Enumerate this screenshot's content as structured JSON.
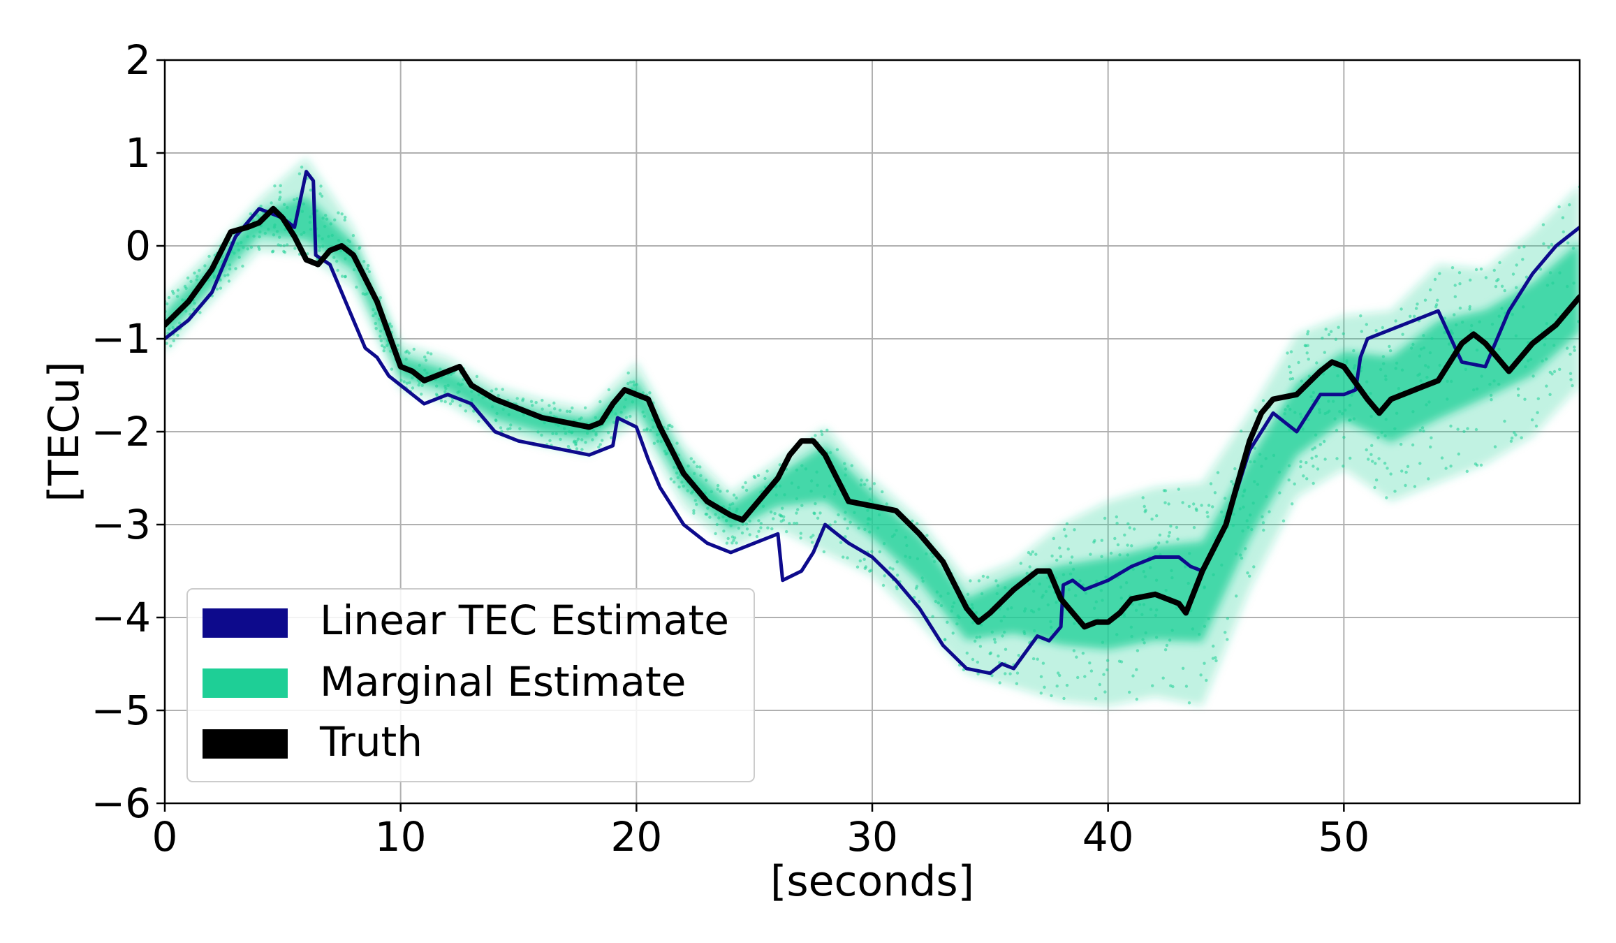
{
  "chart_data": {
    "type": "line",
    "title": "",
    "xlabel": "[seconds]",
    "ylabel": "[TECu]",
    "xlim": [
      0,
      60
    ],
    "ylim": [
      -6,
      2
    ],
    "xticks": [
      0,
      10,
      20,
      30,
      40,
      50
    ],
    "xtick_labels": [
      "0",
      "10",
      "20",
      "30",
      "40",
      "50"
    ],
    "yticks": [
      -6,
      -5,
      -4,
      -3,
      -2,
      -1,
      0,
      1,
      2
    ],
    "ytick_labels": [
      "−6",
      "−5",
      "−4",
      "−3",
      "−2",
      "−1",
      "0",
      "1",
      "2"
    ],
    "grid": true,
    "legend_position": "lower-left",
    "colors": {
      "linear": "#0d0a8c",
      "marginal": "#1ecf96",
      "truth": "#000000"
    },
    "series": [
      {
        "name": "Linear TEC Estimate",
        "color": "#0d0a8c",
        "x": [
          0,
          1,
          2,
          3,
          4,
          5,
          5.5,
          6,
          6.3,
          6.4,
          7,
          8,
          8.5,
          9,
          9.5,
          10,
          10.5,
          11,
          12,
          13,
          14,
          15,
          16,
          17,
          18,
          19,
          19.2,
          20,
          20.5,
          21,
          21.5,
          22,
          22.5,
          23,
          24,
          25,
          26,
          26.2,
          27,
          27.5,
          28,
          28.5,
          29,
          30,
          31,
          32,
          33,
          34,
          35,
          35.5,
          36,
          37,
          37.5,
          38,
          38.1,
          38.5,
          39,
          40,
          41,
          42,
          43,
          43.5,
          44,
          45,
          46,
          47,
          47.5,
          48,
          49,
          50,
          50.5,
          50.7,
          51,
          52,
          53,
          54,
          55,
          56,
          57,
          58,
          59,
          60
        ],
        "y": [
          -1.0,
          -0.8,
          -0.5,
          0.1,
          0.4,
          0.3,
          0.2,
          0.8,
          0.7,
          -0.1,
          -0.2,
          -0.8,
          -1.1,
          -1.2,
          -1.4,
          -1.5,
          -1.6,
          -1.7,
          -1.6,
          -1.7,
          -2.0,
          -2.1,
          -2.15,
          -2.2,
          -2.25,
          -2.15,
          -1.85,
          -1.95,
          -2.3,
          -2.6,
          -2.8,
          -3.0,
          -3.1,
          -3.2,
          -3.3,
          -3.2,
          -3.1,
          -3.6,
          -3.5,
          -3.3,
          -3.0,
          -3.1,
          -3.2,
          -3.35,
          -3.6,
          -3.9,
          -4.3,
          -4.55,
          -4.6,
          -4.5,
          -4.55,
          -4.2,
          -4.25,
          -4.1,
          -3.65,
          -3.6,
          -3.7,
          -3.6,
          -3.45,
          -3.35,
          -3.35,
          -3.45,
          -3.5,
          -3.0,
          -2.2,
          -1.8,
          -1.9,
          -2.0,
          -1.6,
          -1.6,
          -1.55,
          -1.2,
          -1.0,
          -0.9,
          -0.8,
          -0.7,
          -1.25,
          -1.3,
          -0.7,
          -0.3,
          0.0,
          0.2
        ]
      },
      {
        "name": "Marginal Estimate",
        "color": "#1ecf96",
        "x": [
          0,
          2,
          4,
          6,
          8,
          10,
          12,
          14,
          16,
          18,
          20,
          22,
          24,
          26,
          28,
          30,
          32,
          34,
          36,
          38,
          40,
          42,
          44,
          46,
          48,
          50,
          52,
          54,
          56,
          58,
          60
        ],
        "y": [
          -0.85,
          -0.3,
          0.25,
          0.2,
          -0.1,
          -1.3,
          -1.45,
          -1.75,
          -1.9,
          -1.95,
          -1.6,
          -2.45,
          -2.9,
          -2.6,
          -2.3,
          -2.8,
          -3.25,
          -3.95,
          -3.7,
          -3.8,
          -3.85,
          -3.75,
          -3.7,
          -2.7,
          -1.9,
          -1.45,
          -1.6,
          -1.3,
          -1.05,
          -0.85,
          -0.45
        ],
        "band_lower": [
          -1.15,
          -0.6,
          -0.05,
          -0.1,
          -0.45,
          -1.55,
          -1.7,
          -2.0,
          -2.15,
          -2.25,
          -1.9,
          -2.8,
          -3.25,
          -3.05,
          -3.3,
          -3.55,
          -4.05,
          -4.6,
          -4.75,
          -4.9,
          -4.95,
          -4.85,
          -4.95,
          -3.7,
          -2.7,
          -2.4,
          -2.75,
          -2.55,
          -2.35,
          -2.05,
          -1.5
        ],
        "band_upper": [
          -0.55,
          -0.05,
          0.5,
          0.95,
          0.2,
          -1.05,
          -1.2,
          -1.5,
          -1.65,
          -1.75,
          -1.25,
          -2.15,
          -2.65,
          -2.3,
          -1.95,
          -2.5,
          -2.95,
          -3.6,
          -3.4,
          -3.0,
          -2.75,
          -2.6,
          -2.55,
          -1.8,
          -0.95,
          -0.75,
          -0.7,
          -0.2,
          -0.25,
          0.15,
          0.65
        ]
      },
      {
        "name": "Truth",
        "color": "#000000",
        "x": [
          0,
          1,
          2,
          2.8,
          3.5,
          4,
          4.6,
          5,
          5.5,
          6,
          6.5,
          7,
          7.5,
          8,
          9,
          10,
          10.5,
          11,
          11.5,
          12,
          12.5,
          13,
          14,
          15,
          16,
          17,
          18,
          18.5,
          19,
          19.5,
          20,
          20.5,
          21,
          22,
          23,
          24,
          24.5,
          25,
          26,
          26.5,
          27,
          27.5,
          28,
          28.5,
          29,
          30,
          31,
          32,
          33,
          34,
          34.5,
          35,
          36,
          36.5,
          37,
          37.5,
          38,
          39,
          39.5,
          40,
          40.5,
          41,
          42,
          43,
          43.3,
          44,
          45,
          46,
          46.5,
          47,
          48,
          49,
          49.5,
          50,
          51,
          51.5,
          52,
          53,
          54,
          55,
          55.5,
          56,
          57,
          58,
          59,
          60
        ],
        "y": [
          -0.85,
          -0.6,
          -0.25,
          0.15,
          0.2,
          0.25,
          0.4,
          0.3,
          0.1,
          -0.15,
          -0.2,
          -0.05,
          0.0,
          -0.1,
          -0.6,
          -1.3,
          -1.35,
          -1.45,
          -1.4,
          -1.35,
          -1.3,
          -1.5,
          -1.65,
          -1.75,
          -1.85,
          -1.9,
          -1.95,
          -1.9,
          -1.7,
          -1.55,
          -1.6,
          -1.65,
          -1.95,
          -2.45,
          -2.75,
          -2.9,
          -2.95,
          -2.8,
          -2.5,
          -2.25,
          -2.1,
          -2.1,
          -2.25,
          -2.5,
          -2.75,
          -2.8,
          -2.85,
          -3.1,
          -3.4,
          -3.9,
          -4.05,
          -3.95,
          -3.7,
          -3.6,
          -3.5,
          -3.5,
          -3.8,
          -4.1,
          -4.05,
          -4.05,
          -3.95,
          -3.8,
          -3.75,
          -3.85,
          -3.95,
          -3.5,
          -3.0,
          -2.1,
          -1.8,
          -1.65,
          -1.6,
          -1.35,
          -1.25,
          -1.3,
          -1.65,
          -1.8,
          -1.65,
          -1.55,
          -1.45,
          -1.05,
          -0.95,
          -1.05,
          -1.35,
          -1.05,
          -0.85,
          -0.55
        ]
      }
    ]
  },
  "legend": {
    "entries": [
      "Linear TEC Estimate",
      "Marginal Estimate",
      "Truth"
    ]
  }
}
